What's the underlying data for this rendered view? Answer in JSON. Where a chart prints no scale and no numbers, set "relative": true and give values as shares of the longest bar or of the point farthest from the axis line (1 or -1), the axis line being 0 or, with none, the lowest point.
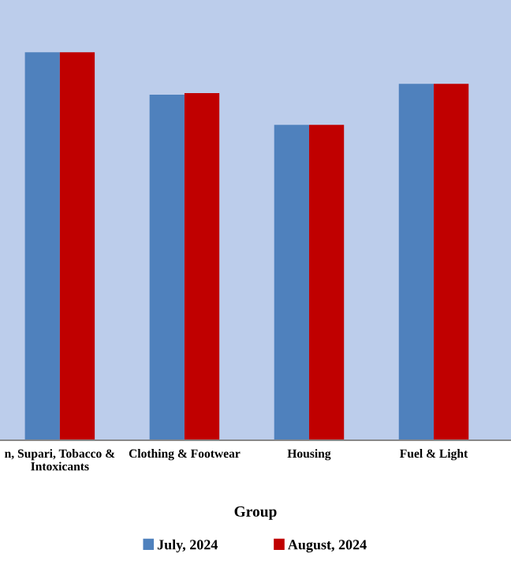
{
  "chart_data": {
    "type": "bar",
    "relative": true,
    "xlabel": "Group",
    "categories": [
      "n, Supari, Tobacco &\nIntoxicants",
      "Clothing & Footwear",
      "Housing",
      "Fuel & Light"
    ],
    "series": [
      {
        "name": "July, 2024",
        "color": "#4f81bd",
        "values": [
          1,
          0.891,
          0.813,
          0.919
        ]
      },
      {
        "name": "August, 2024",
        "color": "#c00000",
        "values": [
          1,
          0.895,
          0.813,
          0.919
        ]
      }
    ],
    "legend": "bottom",
    "grid": false
  }
}
